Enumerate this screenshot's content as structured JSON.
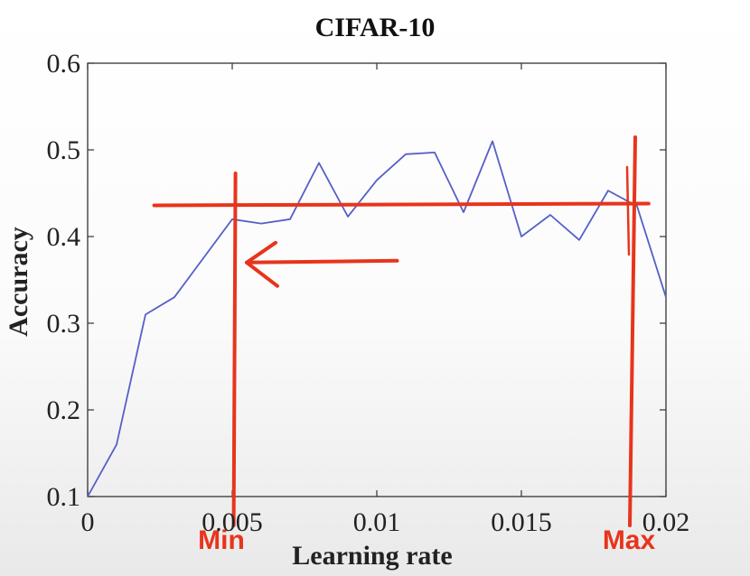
{
  "chart_data": {
    "type": "line",
    "title": "CIFAR-10",
    "xlabel": "Learning rate",
    "ylabel": "Accuracy",
    "xlim": [
      0,
      0.02
    ],
    "ylim": [
      0.1,
      0.6
    ],
    "xticks": [
      0,
      0.005,
      0.01,
      0.015,
      0.02
    ],
    "xtick_labels": [
      "0",
      "0.005",
      "0.01",
      "0.015",
      "0.02"
    ],
    "yticks": [
      0.1,
      0.2,
      0.3,
      0.4,
      0.5,
      0.6
    ],
    "ytick_labels": [
      "0.1",
      "0.2",
      "0.3",
      "0.4",
      "0.5",
      "0.6"
    ],
    "grid": false,
    "series": [
      {
        "color": "#5560c8",
        "x": [
          0,
          0.001,
          0.002,
          0.003,
          0.004,
          0.005,
          0.006,
          0.007,
          0.008,
          0.009,
          0.01,
          0.011,
          0.012,
          0.013,
          0.014,
          0.015,
          0.016,
          0.017,
          0.018,
          0.019,
          0.02
        ],
        "y": [
          0.1,
          0.16,
          0.31,
          0.33,
          0.375,
          0.42,
          0.415,
          0.42,
          0.485,
          0.423,
          0.465,
          0.495,
          0.497,
          0.428,
          0.51,
          0.4,
          0.425,
          0.396,
          0.453,
          0.435,
          0.33
        ]
      }
    ],
    "annotations": {
      "color": "#e8341c",
      "horizontal_line_y": 0.437,
      "horizontal_line_x_range": [
        0.0023,
        0.0194
      ],
      "min_line_x": 0.00505,
      "max_line_x": 0.01875,
      "arrow_y": 0.37,
      "arrow_x_from": 0.0107,
      "arrow_x_to": 0.0055,
      "min_label": "Min",
      "max_label": "Max"
    }
  }
}
